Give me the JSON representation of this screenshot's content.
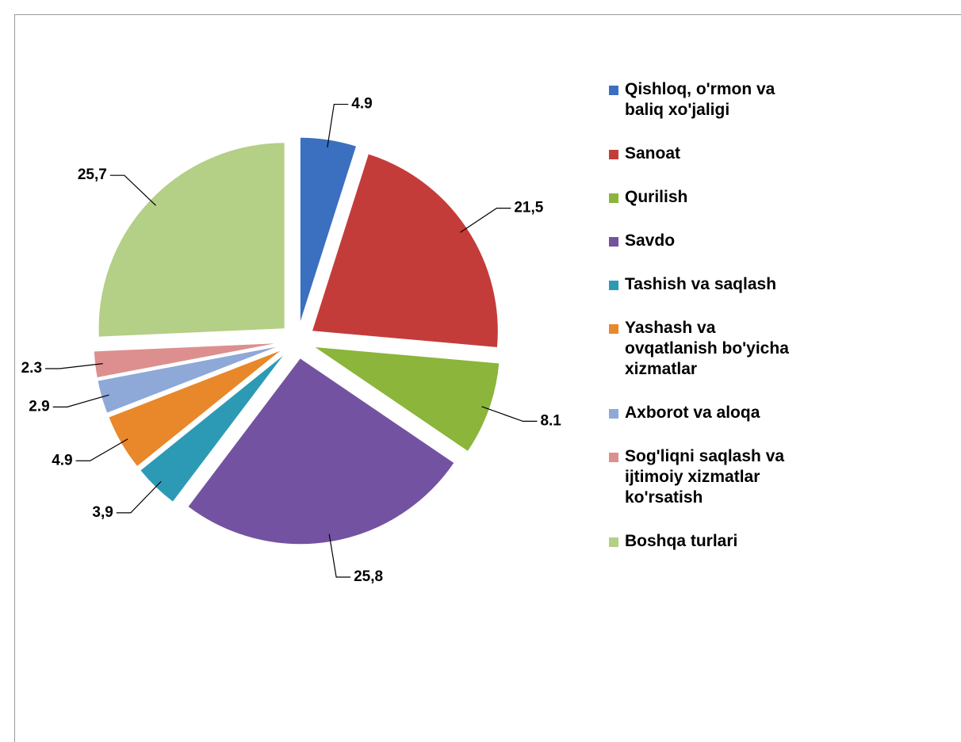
{
  "chart_data": {
    "type": "pie",
    "categories": [
      "Qishloq, o'rmon va baliq xo'jaligi",
      "Sanoat",
      "Qurilish",
      "Savdo",
      "Tashish va saqlash",
      "Yashash va ovqatlanish bo'yicha xizmatlar",
      "Axborot va aloqa",
      "Sog'liqni saqlash va ijtimoiy xizmatlar ko'rsatish",
      "Boshqa turlari"
    ],
    "values": [
      4.9,
      21.5,
      8.1,
      25.8,
      3.9,
      4.9,
      2.9,
      2.3,
      25.7
    ],
    "value_labels": [
      "4.9",
      "21,5",
      "8.1",
      "25,8",
      "3,9",
      "4.9",
      "2.9",
      "2.3",
      "25,7"
    ],
    "colors": [
      "#3b6fc0",
      "#c43c3a",
      "#8bb53b",
      "#7452a2",
      "#2c9ab4",
      "#e8882a",
      "#8ea8d8",
      "#dc8f8e",
      "#b4cf86"
    ],
    "legend": "right"
  }
}
